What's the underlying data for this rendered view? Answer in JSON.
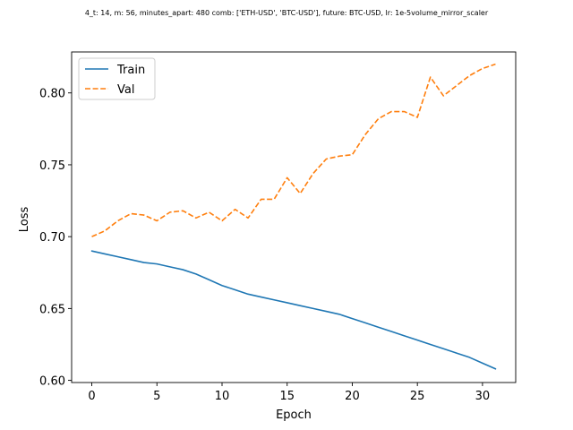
{
  "chart_data": {
    "type": "line",
    "title": "4_t: 14, m: 56, minutes_apart: 480 comb: ['ETH-USD', 'BTC-USD'], future: BTC-USD, lr: 1e-5volume_mirror_scaler",
    "xlabel": "Epoch",
    "ylabel": "Loss",
    "xlim": [
      -1.55,
      32.55
    ],
    "ylim": [
      0.5985,
      0.8285
    ],
    "xticks": [
      0,
      5,
      10,
      15,
      20,
      25,
      30
    ],
    "xtick_labels": [
      "0",
      "5",
      "10",
      "15",
      "20",
      "25",
      "30"
    ],
    "yticks": [
      0.6,
      0.65,
      0.7,
      0.75,
      0.8
    ],
    "ytick_labels": [
      "0.60",
      "0.65",
      "0.70",
      "0.75",
      "0.80"
    ],
    "grid": false,
    "legend_position": "top-left",
    "x": [
      0,
      1,
      2,
      3,
      4,
      5,
      6,
      7,
      8,
      9,
      10,
      11,
      12,
      13,
      14,
      15,
      16,
      17,
      18,
      19,
      20,
      21,
      22,
      23,
      24,
      25,
      26,
      27,
      28,
      29,
      30,
      31
    ],
    "series": [
      {
        "name": "Train",
        "color": "#1f77b4",
        "style": "solid",
        "values": [
          0.69,
          0.688,
          0.686,
          0.684,
          0.682,
          0.681,
          0.679,
          0.677,
          0.674,
          0.67,
          0.666,
          0.663,
          0.66,
          0.658,
          0.656,
          0.654,
          0.652,
          0.65,
          0.648,
          0.646,
          0.643,
          0.64,
          0.637,
          0.634,
          0.631,
          0.628,
          0.625,
          0.622,
          0.619,
          0.616,
          0.612,
          0.608
        ]
      },
      {
        "name": "Val",
        "color": "#ff7f0e",
        "style": "dashed",
        "values": [
          0.7,
          0.704,
          0.711,
          0.716,
          0.715,
          0.711,
          0.717,
          0.718,
          0.713,
          0.717,
          0.711,
          0.719,
          0.713,
          0.726,
          0.726,
          0.741,
          0.73,
          0.744,
          0.754,
          0.756,
          0.757,
          0.771,
          0.782,
          0.787,
          0.787,
          0.783,
          0.811,
          0.798,
          0.805,
          0.812,
          0.817,
          0.82
        ]
      }
    ]
  }
}
